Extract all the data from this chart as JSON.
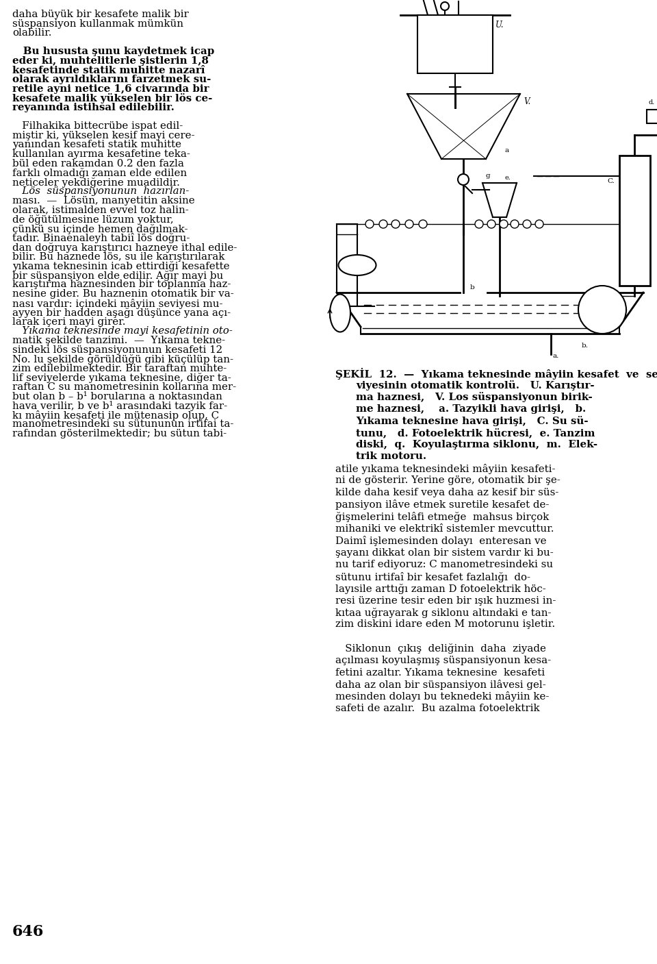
{
  "bg_color": "#ffffff",
  "text_color": "#000000",
  "page_number": "646",
  "left_col_lines": [
    [
      "daha büyük bir kesafete malik bir",
      "normal"
    ],
    [
      "süspansiyon kullanmak mümkün",
      "normal"
    ],
    [
      "olabilir.",
      "normal"
    ],
    [
      "",
      "normal"
    ],
    [
      "   Bu hususta şunu kaydetmek icap",
      "bold"
    ],
    [
      "eder ki, muhtelitlerle şistlerin 1,8",
      "bold"
    ],
    [
      "kesafetinde statik muhitte nazarî",
      "bold"
    ],
    [
      "olarak ayrıldıklarını farzetmek su-",
      "bold"
    ],
    [
      "retile ayni netice 1,6 civarında bir",
      "bold"
    ],
    [
      "kesafete malik yükselen bir lös ce-",
      "bold"
    ],
    [
      "reyanında istihsal edilebilir.",
      "bold"
    ],
    [
      "",
      "normal"
    ],
    [
      "   Filhakika bittecrübe ispat edil-",
      "normal"
    ],
    [
      "miştir ki, yükselen kesif mayi cere-",
      "normal"
    ],
    [
      "yanından kesafeti statik muhitte",
      "normal"
    ],
    [
      "kullanılan ayırma kesafetine teka-",
      "normal"
    ],
    [
      "bül eden rakamdan 0.2 den fazla",
      "normal"
    ],
    [
      "farklı olmadığı zaman elde edilen",
      "normal"
    ],
    [
      "neticeler yekdiğerine muadildir.",
      "normal"
    ],
    [
      "   Lös  süspansiyonunun  hazırlan-",
      "italic"
    ],
    [
      "ması.  —  Lösün, manyetitin aksine",
      "normal"
    ],
    [
      "olarak, istimalden evvel toz halin-",
      "normal"
    ],
    [
      "de öğütülmesine lüzum yoktur,",
      "normal"
    ],
    [
      "çünkü su içinde hemen dağılmak-",
      "normal"
    ],
    [
      "tadır. Binaenaleyh tabiî lös doğru-",
      "normal"
    ],
    [
      "dan doğruya karıştırıcı hazneye ithal edile-",
      "normal"
    ],
    [
      "bilir. Bu haznede lös, su ile karıştırılarak",
      "normal"
    ],
    [
      "yıkama teknesinin icab ettirdiği kesafette",
      "normal"
    ],
    [
      "bir süspansiyon elde edilir. Ağır mayi bu",
      "normal"
    ],
    [
      "karıştırma haznesinden bir toplanma haz-",
      "normal"
    ],
    [
      "nesine gider. Bu haznenin otomatik bir va-",
      "normal"
    ],
    [
      "nası vardır: içindeki mâyiin seviyesi mu-",
      "normal"
    ],
    [
      "ayyen bir hadden aşağı düşünce yana açı-",
      "normal"
    ],
    [
      "larak içeri mayi girer.",
      "normal"
    ],
    [
      "   Yıkama teknesinde mayi kesafetinin oto-",
      "italic"
    ],
    [
      "matik şekilde tanzimi.  —  Yıkama tekne-",
      "normal"
    ],
    [
      "sindeki lös süspansiyonunun kesafeti 12",
      "normal"
    ],
    [
      "No. lu şekilde görüldüğü gibi küçülüp tan-",
      "normal"
    ],
    [
      "zim edilebilmektedir. Bir taraftan muhte-",
      "normal"
    ],
    [
      "lif seviyelerde yıkama teknesine, diğer ta-",
      "normal"
    ],
    [
      "raftan C su manometresinin kollarına mer-",
      "normal"
    ],
    [
      "but olan b – b¹ borularına a noktasından",
      "normal"
    ],
    [
      "hava verilir, b ve b¹ arasındaki tazyik far-",
      "normal"
    ],
    [
      "kı mâyiin kesafeti ile mütenasip olup, C",
      "normal"
    ],
    [
      "manometresindeki su sütununun irtifai ta-",
      "normal"
    ],
    [
      "rafından gösterilmektedir; bu sütun tabi-",
      "normal"
    ]
  ],
  "right_col_lines": [
    [
      "atile yıkama teknesindeki mâyiin kesafeti-",
      "normal"
    ],
    [
      "ni de gösterir. Yerine göre, otomatik bir şe-",
      "normal"
    ],
    [
      "kilde daha kesif veya daha az kesif bir süs-",
      "normal"
    ],
    [
      "pansiyon ilâve etmek suretile kesafet de-",
      "normal"
    ],
    [
      "ğişmelerini telâfi etmeğe  mahsus birçok",
      "normal"
    ],
    [
      "mihaniki ve elektrikî sistemler mevcuttur.",
      "normal"
    ],
    [
      "Daimî işlemesinden dolayı  enteresan ve",
      "normal"
    ],
    [
      "şayanı dikkat olan bir sistem vardır ki bu-",
      "normal"
    ],
    [
      "nu tarif ediyoruz: C manometresindeki su",
      "normal"
    ],
    [
      "sütunu irtifaî bir kesafet fazlalığı  do-",
      "normal"
    ],
    [
      "layısile arttığı zaman D fotoelektrik höc-",
      "normal"
    ],
    [
      "resi üzerine tesir eden bir ışık huzmesi in-",
      "normal"
    ],
    [
      "kıtaa uğrayarak g siklonu altındaki e tan-",
      "normal"
    ],
    [
      "zim diskini idare eden M motorunu işletir.",
      "normal"
    ],
    [
      "",
      "normal"
    ],
    [
      "   Siklonun  çıkış  deliğinin  daha  ziyade",
      "normal"
    ],
    [
      "açılması koyulaşmış süspansiyonun kesa-",
      "normal"
    ],
    [
      "fetini azaltır. Yıkama teknesine  kesafeti",
      "normal"
    ],
    [
      "daha az olan bir süspansiyon ilâvesi gel-",
      "normal"
    ],
    [
      "mesinden dolayı bu teknedeki mâyiin ke-",
      "normal"
    ],
    [
      "safeti de azalır.  Bu azalma fotoelektrik",
      "normal"
    ]
  ],
  "caption_lines": [
    [
      "ŞEKİL  12.  —  Yıkama teknesinde mâyiin kesafet  ve  se-",
      true
    ],
    [
      "viyesinin otomatik kontrolü.   U. Karıştır-",
      false
    ],
    [
      "ma haznesi,   V. Los süspansiyonun birik-",
      false
    ],
    [
      "me haznesi,    a. Tazyikli hava girişi,   b.",
      false
    ],
    [
      "Yıkama teknesine hava girişi,   C. Su sü-",
      false
    ],
    [
      "tunu,   d. Fotoelektrik hücresi,  e. Tanzim",
      false
    ],
    [
      "diski,  q.  Koyulaştırma siklonu,  m.  Elek-",
      false
    ],
    [
      "trik motoru.",
      false
    ]
  ]
}
